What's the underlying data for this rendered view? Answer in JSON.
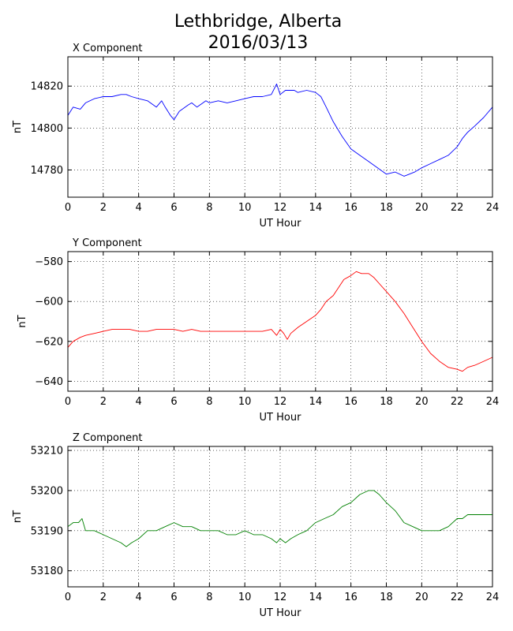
{
  "figure": {
    "title_line1": "Lethbridge, Alberta",
    "title_line2": "2016/03/13"
  },
  "chart_data": [
    {
      "type": "line",
      "title": "X Component",
      "xlabel": "UT Hour",
      "ylabel": "nT",
      "xlim": [
        0,
        24
      ],
      "ylim": [
        14767,
        14834
      ],
      "xticks": [
        0,
        2,
        4,
        6,
        8,
        10,
        12,
        14,
        16,
        18,
        20,
        22,
        24
      ],
      "yticks": [
        14780,
        14800,
        14820
      ],
      "grid": true,
      "color": "#0000ff",
      "x": [
        0,
        0.3,
        0.7,
        1,
        1.5,
        2,
        2.5,
        3,
        3.3,
        3.6,
        4,
        4.5,
        5,
        5.3,
        5.5,
        5.8,
        6,
        6.3,
        6.8,
        7,
        7.3,
        7.8,
        8,
        8.5,
        9,
        9.5,
        10,
        10.5,
        11,
        11.5,
        11.8,
        12,
        12.3,
        12.8,
        13,
        13.5,
        14,
        14.3,
        14.6,
        15,
        15.5,
        16,
        16.5,
        17,
        17.5,
        18,
        18.5,
        19,
        19.3,
        19.6,
        20,
        20.5,
        21,
        21.5,
        22,
        22.3,
        22.6,
        23,
        23.5,
        24
      ],
      "y": [
        14806,
        14810,
        14809,
        14812,
        14814,
        14815,
        14815,
        14816,
        14816,
        14815,
        14814,
        14813,
        14810,
        14813,
        14810,
        14806,
        14804,
        14808,
        14811,
        14812,
        14810,
        14813,
        14812,
        14813,
        14812,
        14813,
        14814,
        14815,
        14815,
        14816,
        14821,
        14816,
        14818,
        14818,
        14817,
        14818,
        14817,
        14815,
        14810,
        14803,
        14796,
        14790,
        14787,
        14784,
        14781,
        14778,
        14779,
        14777,
        14778,
        14779,
        14781,
        14783,
        14785,
        14787,
        14791,
        14795,
        14798,
        14801,
        14805,
        14810
      ]
    },
    {
      "type": "line",
      "title": "Y Component",
      "xlabel": "UT Hour",
      "ylabel": "nT",
      "xlim": [
        0,
        24
      ],
      "ylim": [
        -645,
        -575
      ],
      "xticks": [
        0,
        2,
        4,
        6,
        8,
        10,
        12,
        14,
        16,
        18,
        20,
        22,
        24
      ],
      "yticks": [
        -580,
        -600,
        -620,
        -640
      ],
      "grid": true,
      "color": "#ff0000",
      "x": [
        0,
        0.3,
        0.7,
        1,
        1.5,
        2,
        2.5,
        3,
        3.5,
        4,
        4.5,
        5,
        5.5,
        6,
        6.5,
        7,
        7.5,
        8,
        8.5,
        9,
        9.5,
        10,
        10.5,
        11,
        11.5,
        11.8,
        12,
        12.2,
        12.4,
        12.6,
        13,
        13.5,
        14,
        14.3,
        14.6,
        15,
        15.3,
        15.6,
        16,
        16.3,
        16.6,
        17,
        17.3,
        17.6,
        18,
        18.5,
        19,
        19.5,
        20,
        20.5,
        21,
        21.5,
        22,
        22.3,
        22.6,
        23,
        23.5,
        24
      ],
      "y": [
        -623,
        -620,
        -618,
        -617,
        -616,
        -615,
        -614,
        -614,
        -614,
        -615,
        -615,
        -614,
        -614,
        -614,
        -615,
        -614,
        -615,
        -615,
        -615,
        -615,
        -615,
        -615,
        -615,
        -615,
        -614,
        -617,
        -614,
        -616,
        -619,
        -616,
        -613,
        -610,
        -607,
        -604,
        -600,
        -597,
        -593,
        -589,
        -587,
        -585,
        -586,
        -586,
        -588,
        -591,
        -595,
        -600,
        -606,
        -613,
        -620,
        -626,
        -630,
        -633,
        -634,
        -635,
        -633,
        -632,
        -630,
        -628
      ]
    },
    {
      "type": "line",
      "title": "Z Component",
      "xlabel": "UT Hour",
      "ylabel": "nT",
      "xlim": [
        0,
        24
      ],
      "ylim": [
        53176,
        53211
      ],
      "xticks": [
        0,
        2,
        4,
        6,
        8,
        10,
        12,
        14,
        16,
        18,
        20,
        22,
        24
      ],
      "yticks": [
        53180,
        53190,
        53200,
        53210
      ],
      "grid": true,
      "color": "#008000",
      "x": [
        0,
        0.3,
        0.6,
        0.8,
        1,
        1.5,
        2,
        2.5,
        3,
        3.3,
        3.6,
        4,
        4.5,
        5,
        5.5,
        6,
        6.5,
        7,
        7.5,
        8,
        8.5,
        9,
        9.5,
        10,
        10.5,
        11,
        11.5,
        11.8,
        12,
        12.3,
        12.6,
        13,
        13.5,
        14,
        14.5,
        15,
        15.5,
        16,
        16.5,
        17,
        17.3,
        17.6,
        18,
        18.5,
        19,
        19.5,
        20,
        20.5,
        21,
        21.5,
        22,
        22.3,
        22.6,
        23,
        23.5,
        24
      ],
      "y": [
        53191,
        53192,
        53192,
        53193,
        53190,
        53190,
        53189,
        53188,
        53187,
        53186,
        53187,
        53188,
        53190,
        53190,
        53191,
        53192,
        53191,
        53191,
        53190,
        53190,
        53190,
        53189,
        53189,
        53190,
        53189,
        53189,
        53188,
        53187,
        53188,
        53187,
        53188,
        53189,
        53190,
        53192,
        53193,
        53194,
        53196,
        53197,
        53199,
        53200,
        53200,
        53199,
        53197,
        53195,
        53192,
        53191,
        53190,
        53190,
        53190,
        53191,
        53193,
        53193,
        53194,
        53194,
        53194,
        53194
      ]
    }
  ]
}
